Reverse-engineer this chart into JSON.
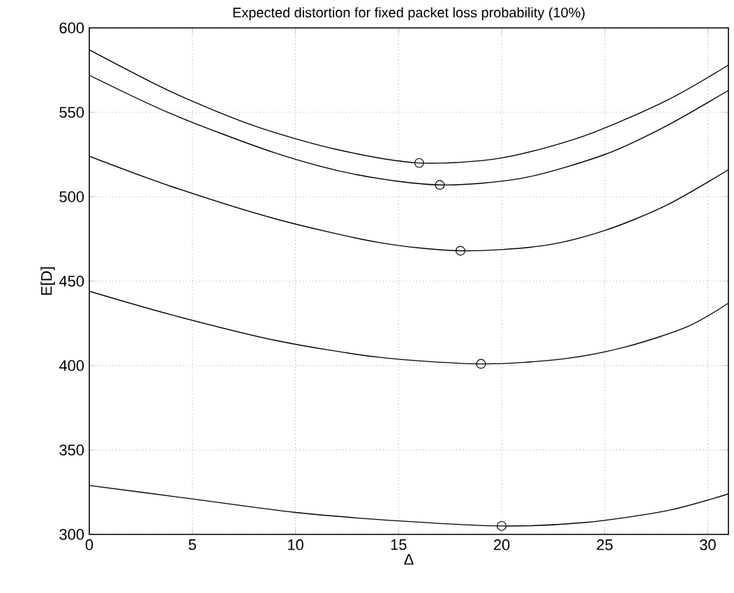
{
  "chart_data": {
    "type": "line",
    "title": "Expected distortion for fixed packet loss probability (10%)",
    "xlabel": "Δ",
    "ylabel": "E[D]",
    "xlim": [
      0,
      31
    ],
    "ylim": [
      300,
      600
    ],
    "xticks": [
      0,
      5,
      10,
      15,
      20,
      25,
      30
    ],
    "yticks": [
      300,
      350,
      400,
      450,
      500,
      550,
      600
    ],
    "grid": true,
    "series": [
      {
        "color": "#000000",
        "x": [
          0,
          4,
          8,
          12,
          16,
          20,
          24,
          28,
          31
        ],
        "values": [
          587,
          562,
          542,
          528,
          520,
          523,
          536,
          557,
          578
        ]
      },
      {
        "color": "#000000",
        "x": [
          0,
          4,
          9,
          13,
          17,
          21,
          25,
          28,
          31
        ],
        "values": [
          572,
          549,
          526,
          513,
          507,
          511,
          525,
          542,
          563
        ]
      },
      {
        "color": "#000000",
        "x": [
          0,
          4,
          9,
          14,
          18,
          22,
          25,
          28,
          31
        ],
        "values": [
          524,
          506,
          487,
          473,
          468,
          471,
          480,
          495,
          516
        ]
      },
      {
        "color": "#000000",
        "x": [
          0,
          4,
          9,
          14,
          19,
          23,
          26,
          29,
          31
        ],
        "values": [
          444,
          430,
          415,
          405,
          401,
          404,
          411,
          423,
          437
        ]
      },
      {
        "color": "#000000",
        "x": [
          0,
          5,
          10,
          15,
          20,
          24,
          28,
          31
        ],
        "values": [
          329,
          321,
          313,
          308,
          305,
          307,
          314,
          324
        ]
      },
      {
        "type": "scatter",
        "color": "#000000",
        "marker": "circle",
        "x": [
          16,
          17,
          18,
          19,
          20
        ],
        "values": [
          520,
          507,
          468,
          401,
          305
        ]
      }
    ]
  }
}
